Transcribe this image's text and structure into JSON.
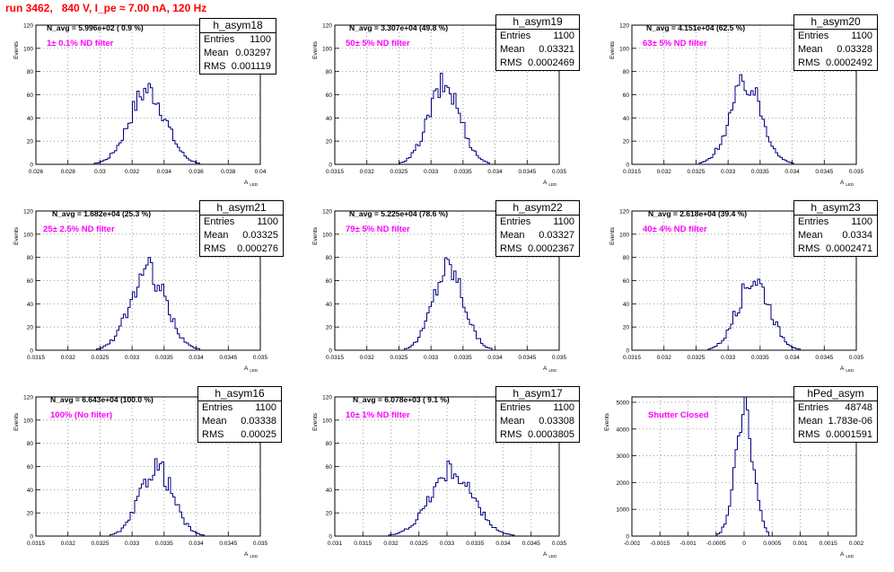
{
  "title": "run 3462,   840 V, I_pe ≈ 7.00 nA, 120 Hz",
  "stats_labels": {
    "entries": "Entries",
    "mean": "Mean",
    "rms": "RMS"
  },
  "ylabel": "Events",
  "xlabel_main": "A",
  "xlabel_sub": "LED",
  "chart_data": [
    {
      "type": "bar",
      "name": "h_asym18",
      "stats": {
        "entries": "1100",
        "mean": "0.03297",
        "rms": "0.001119"
      },
      "navg": "N_avg = 5.996e+02 ( 0.9 %)",
      "filter": "1± 0.1% ND filter",
      "xlim": [
        0.026,
        0.04
      ],
      "ylim": [
        0,
        120
      ],
      "xticks": [
        0.026,
        0.028,
        0.03,
        0.032,
        0.034,
        0.036,
        0.038,
        0.04
      ],
      "xtick_labels": [
        "0.026",
        "0.028",
        "0.03",
        "0.032",
        "0.034",
        "0.036",
        "0.038",
        "0.04"
      ],
      "yticks": [
        0,
        20,
        40,
        60,
        80,
        100,
        120
      ],
      "ytick_labels": [
        "0",
        "20",
        "40",
        "60",
        "80",
        "100",
        "120"
      ],
      "mean": 0.03297,
      "sigma": 0.001119,
      "peak": 64
    },
    {
      "type": "bar",
      "name": "h_asym19",
      "stats": {
        "entries": "1100",
        "mean": "0.03321",
        "rms": "0.0002469"
      },
      "navg": "N_avg = 3.307e+04 (49.8 %)",
      "filter": "50± 5% ND filter",
      "xlim": [
        0.0315,
        0.035
      ],
      "ylim": [
        0,
        120
      ],
      "xticks": [
        0.0315,
        0.032,
        0.0325,
        0.033,
        0.0335,
        0.034,
        0.0345,
        0.035
      ],
      "xtick_labels": [
        "0.0315",
        "0.032",
        "0.0325",
        "0.033",
        "0.0335",
        "0.034",
        "0.0345",
        "0.035"
      ],
      "yticks": [
        0,
        20,
        40,
        60,
        80,
        100,
        120
      ],
      "ytick_labels": [
        "0",
        "20",
        "40",
        "60",
        "80",
        "100",
        "120"
      ],
      "mean": 0.03321,
      "sigma": 0.0002469,
      "peak": 68
    },
    {
      "type": "bar",
      "name": "h_asym20",
      "stats": {
        "entries": "1100",
        "mean": "0.03328",
        "rms": "0.0002492"
      },
      "navg": "N_avg = 4.151e+04 (62.5 %)",
      "filter": "63± 5% ND filter",
      "xlim": [
        0.0315,
        0.035
      ],
      "ylim": [
        0,
        120
      ],
      "xticks": [
        0.0315,
        0.032,
        0.0325,
        0.033,
        0.0335,
        0.034,
        0.0345,
        0.035
      ],
      "xtick_labels": [
        "0.0315",
        "0.032",
        "0.0325",
        "0.033",
        "0.0335",
        "0.034",
        "0.0345",
        "0.035"
      ],
      "yticks": [
        0,
        20,
        40,
        60,
        80,
        100,
        120
      ],
      "ytick_labels": [
        "0",
        "20",
        "40",
        "60",
        "80",
        "100",
        "120"
      ],
      "mean": 0.03328,
      "sigma": 0.0002492,
      "peak": 70
    },
    {
      "type": "bar",
      "name": "h_asym21",
      "stats": {
        "entries": "1100",
        "mean": "0.03325",
        "rms": "0.000276"
      },
      "navg": "N_avg = 1.682e+04 (25.3 %)",
      "filter": "25± 2.5% ND filter",
      "xlim": [
        0.0315,
        0.035
      ],
      "ylim": [
        0,
        120
      ],
      "xticks": [
        0.0315,
        0.032,
        0.0325,
        0.033,
        0.0335,
        0.034,
        0.0345,
        0.035
      ],
      "xtick_labels": [
        "0.0315",
        "0.032",
        "0.0325",
        "0.033",
        "0.0335",
        "0.034",
        "0.0345",
        "0.035"
      ],
      "yticks": [
        0,
        20,
        40,
        60,
        80,
        100,
        120
      ],
      "ytick_labels": [
        "0",
        "20",
        "40",
        "60",
        "80",
        "100",
        "120"
      ],
      "mean": 0.03325,
      "sigma": 0.000276,
      "peak": 68
    },
    {
      "type": "bar",
      "name": "h_asym22",
      "stats": {
        "entries": "1100",
        "mean": "0.03327",
        "rms": "0.0002367"
      },
      "navg": "N_avg = 5.225e+04 (78.6 %)",
      "filter": "79± 5% ND filter",
      "xlim": [
        0.0315,
        0.035
      ],
      "ylim": [
        0,
        120
      ],
      "xticks": [
        0.0315,
        0.032,
        0.0325,
        0.033,
        0.0335,
        0.034,
        0.0345,
        0.035
      ],
      "xtick_labels": [
        "0.0315",
        "0.032",
        "0.0325",
        "0.033",
        "0.0335",
        "0.034",
        "0.0345",
        "0.035"
      ],
      "yticks": [
        0,
        20,
        40,
        60,
        80,
        100,
        120
      ],
      "ytick_labels": [
        "0",
        "20",
        "40",
        "60",
        "80",
        "100",
        "120"
      ],
      "mean": 0.03327,
      "sigma": 0.0002367,
      "peak": 72
    },
    {
      "type": "bar",
      "name": "h_asym23",
      "stats": {
        "entries": "1100",
        "mean": "0.0334",
        "rms": "0.0002471"
      },
      "navg": "N_avg = 2.618e+04 (39.4 %)",
      "filter": "40± 4% ND filter",
      "xlim": [
        0.0315,
        0.035
      ],
      "ylim": [
        0,
        120
      ],
      "xticks": [
        0.0315,
        0.032,
        0.0325,
        0.033,
        0.0335,
        0.034,
        0.0345,
        0.035
      ],
      "xtick_labels": [
        "0.0315",
        "0.032",
        "0.0325",
        "0.033",
        "0.0335",
        "0.034",
        "0.0345",
        "0.035"
      ],
      "yticks": [
        0,
        20,
        40,
        60,
        80,
        100,
        120
      ],
      "ytick_labels": [
        "0",
        "20",
        "40",
        "60",
        "80",
        "100",
        "120"
      ],
      "mean": 0.0334,
      "sigma": 0.0002471,
      "peak": 62
    },
    {
      "type": "bar",
      "name": "h_asym16",
      "stats": {
        "entries": "1100",
        "mean": "0.03338",
        "rms": "0.00025"
      },
      "navg": "N_avg = 6.643e+04 (100.0 %)",
      "filter": "100% (No filter)",
      "xlim": [
        0.0315,
        0.035
      ],
      "ylim": [
        0,
        120
      ],
      "xticks": [
        0.0315,
        0.032,
        0.0325,
        0.033,
        0.0335,
        0.034,
        0.0345,
        0.035
      ],
      "xtick_labels": [
        "0.0315",
        "0.032",
        "0.0325",
        "0.033",
        "0.0335",
        "0.034",
        "0.0345",
        "0.035"
      ],
      "yticks": [
        0,
        20,
        40,
        60,
        80,
        100,
        120
      ],
      "ytick_labels": [
        "0",
        "20",
        "40",
        "60",
        "80",
        "100",
        "120"
      ],
      "mean": 0.03338,
      "sigma": 0.00025,
      "peak": 60
    },
    {
      "type": "bar",
      "name": "h_asym17",
      "stats": {
        "entries": "1100",
        "mean": "0.03308",
        "rms": "0.0003805"
      },
      "navg": "N_avg = 6.078e+03 ( 9.1 %)",
      "filter": "10± 1% ND filter",
      "xlim": [
        0.031,
        0.035
      ],
      "ylim": [
        0,
        120
      ],
      "xticks": [
        0.031,
        0.0315,
        0.032,
        0.0325,
        0.033,
        0.0335,
        0.034,
        0.0345,
        0.035
      ],
      "xtick_labels": [
        "0.031",
        "0.0315",
        "0.032",
        "0.0325",
        "0.033",
        "0.0335",
        "0.034",
        "0.0345",
        "0.035"
      ],
      "yticks": [
        0,
        20,
        40,
        60,
        80,
        100,
        120
      ],
      "ytick_labels": [
        "0",
        "20",
        "40",
        "60",
        "80",
        "100",
        "120"
      ],
      "mean": 0.03308,
      "sigma": 0.0003805,
      "peak": 56
    },
    {
      "type": "bar",
      "name": "hPed_asym",
      "stats": {
        "entries": "48748",
        "mean": "1.783e-06",
        "rms": "0.0001591"
      },
      "navg": "",
      "filter": "Shutter Closed",
      "xlim": [
        -0.002,
        0.002
      ],
      "ylim": [
        0,
        5200
      ],
      "xticks": [
        -0.002,
        -0.0015,
        -0.001,
        -0.0005,
        0,
        0.0005,
        0.001,
        0.0015,
        0.002
      ],
      "xtick_labels": [
        "-0.002",
        "-0.0015",
        "-0.001",
        "-0.0005",
        "0",
        "0.0005",
        "0.001",
        "0.0015",
        "0.002"
      ],
      "yticks": [
        0,
        1000,
        2000,
        3000,
        4000,
        5000
      ],
      "ytick_labels": [
        "0",
        "1000",
        "2000",
        "3000",
        "4000",
        "5000"
      ],
      "mean": 0.0,
      "sigma": 0.0001591,
      "peak": 4980
    }
  ],
  "colors": {
    "hist": "#000080",
    "grid": "#888888",
    "title": "#ff0000",
    "annotation": "#ff00ff"
  }
}
